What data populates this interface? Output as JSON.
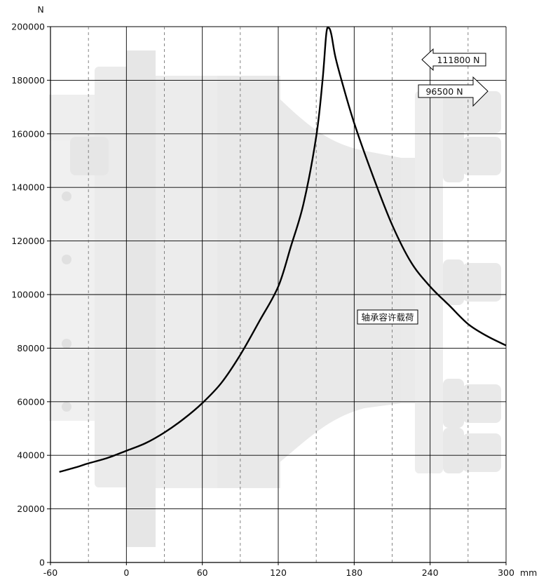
{
  "chart_data": {
    "type": "line",
    "y_unit": "N",
    "x_unit": "mm",
    "xlim": [
      -60,
      300
    ],
    "ylim": [
      0,
      200000
    ],
    "x_major_ticks": [
      -60,
      0,
      60,
      120,
      180,
      240,
      300
    ],
    "x_minor_dashed": [
      -30,
      30,
      90,
      150,
      210,
      270
    ],
    "y_ticks": [
      0,
      20000,
      40000,
      60000,
      80000,
      100000,
      120000,
      140000,
      160000,
      180000,
      200000
    ],
    "grid": true,
    "series": [
      {
        "x": [
          -53,
          -40,
          -30,
          -15,
          0,
          15,
          30,
          45,
          60,
          75,
          90,
          105,
          120,
          130,
          140,
          150,
          155,
          158,
          160,
          162,
          165,
          170,
          180,
          195,
          210,
          225,
          240,
          255,
          270,
          285,
          300
        ],
        "y": [
          33800,
          35500,
          37000,
          39000,
          41700,
          44500,
          48500,
          53500,
          59500,
          67000,
          77500,
          90000,
          103000,
          118000,
          134000,
          159000,
          180000,
          197500,
          199500,
          197000,
          189000,
          180000,
          164000,
          144000,
          126000,
          112000,
          103000,
          96000,
          89000,
          84500,
          81000
        ]
      }
    ],
    "annotations": [
      {
        "text": "111800 N",
        "arrow": "left"
      },
      {
        "text": "96500 N",
        "arrow": "right"
      },
      {
        "text": "轴承容许载荷"
      }
    ]
  }
}
